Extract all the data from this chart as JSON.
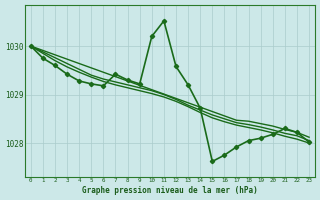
{
  "title": "Graphe pression niveau de la mer (hPa)",
  "bg_color": "#cce8e8",
  "grid_color": "#aacccc",
  "line_color": "#1a6b1a",
  "marker_color": "#1a6b1a",
  "ylabel_values": [
    1028,
    1029,
    1030
  ],
  "xlim": [
    -0.5,
    23.5
  ],
  "ylim": [
    1027.3,
    1030.85
  ],
  "x_ticks": [
    0,
    1,
    2,
    3,
    4,
    5,
    6,
    7,
    8,
    9,
    10,
    11,
    12,
    13,
    14,
    15,
    16,
    17,
    18,
    19,
    20,
    21,
    22,
    23
  ],
  "series": [
    {
      "x": [
        0,
        1,
        2,
        3,
        4,
        5,
        6,
        7,
        8,
        9,
        10,
        11,
        12,
        13,
        14,
        15,
        16,
        17,
        18,
        19,
        20,
        21,
        22,
        23
      ],
      "y": [
        1030.0,
        1029.91,
        1029.82,
        1029.73,
        1029.64,
        1029.55,
        1029.46,
        1029.37,
        1029.28,
        1029.19,
        1029.1,
        1029.01,
        1028.92,
        1028.83,
        1028.74,
        1028.65,
        1028.56,
        1028.47,
        1028.45,
        1028.4,
        1028.35,
        1028.28,
        1028.22,
        1028.12
      ],
      "marker": false,
      "linewidth": 1.0
    },
    {
      "x": [
        0,
        1,
        2,
        3,
        4,
        5,
        6,
        7,
        8,
        9,
        10,
        11,
        12,
        13,
        14,
        15,
        16,
        17,
        18,
        19,
        20,
        21,
        22,
        23
      ],
      "y": [
        1030.0,
        1029.88,
        1029.76,
        1029.64,
        1029.52,
        1029.4,
        1029.32,
        1029.26,
        1029.2,
        1029.14,
        1029.08,
        1029.0,
        1028.9,
        1028.78,
        1028.68,
        1028.58,
        1028.5,
        1028.42,
        1028.38,
        1028.33,
        1028.27,
        1028.2,
        1028.15,
        1028.05
      ],
      "marker": false,
      "linewidth": 1.0
    },
    {
      "x": [
        0,
        1,
        2,
        3,
        4,
        5,
        6,
        7,
        8,
        9,
        10,
        11,
        12,
        13,
        14,
        15,
        16,
        17,
        18,
        19,
        20,
        21,
        22,
        23
      ],
      "y": [
        1030.0,
        1029.85,
        1029.7,
        1029.57,
        1029.46,
        1029.36,
        1029.27,
        1029.2,
        1029.14,
        1029.08,
        1029.02,
        1028.95,
        1028.86,
        1028.75,
        1028.63,
        1028.52,
        1028.44,
        1028.37,
        1028.32,
        1028.27,
        1028.21,
        1028.14,
        1028.08,
        1028.0
      ],
      "marker": false,
      "linewidth": 1.0
    },
    {
      "x": [
        0,
        1,
        2,
        3,
        4,
        5,
        6,
        7,
        8,
        9,
        10,
        11,
        12,
        13,
        14,
        15,
        16,
        17,
        18,
        19,
        20,
        21,
        22,
        23
      ],
      "y": [
        1030.0,
        1029.75,
        1029.6,
        1029.42,
        1029.28,
        1029.22,
        1029.18,
        1029.42,
        1029.3,
        1029.22,
        1030.2,
        1030.52,
        1029.58,
        1029.2,
        1028.72,
        1027.62,
        1027.75,
        1027.92,
        1028.05,
        1028.1,
        1028.18,
        1028.3,
        1028.22,
        1028.02
      ],
      "marker": true,
      "linewidth": 1.2
    }
  ]
}
